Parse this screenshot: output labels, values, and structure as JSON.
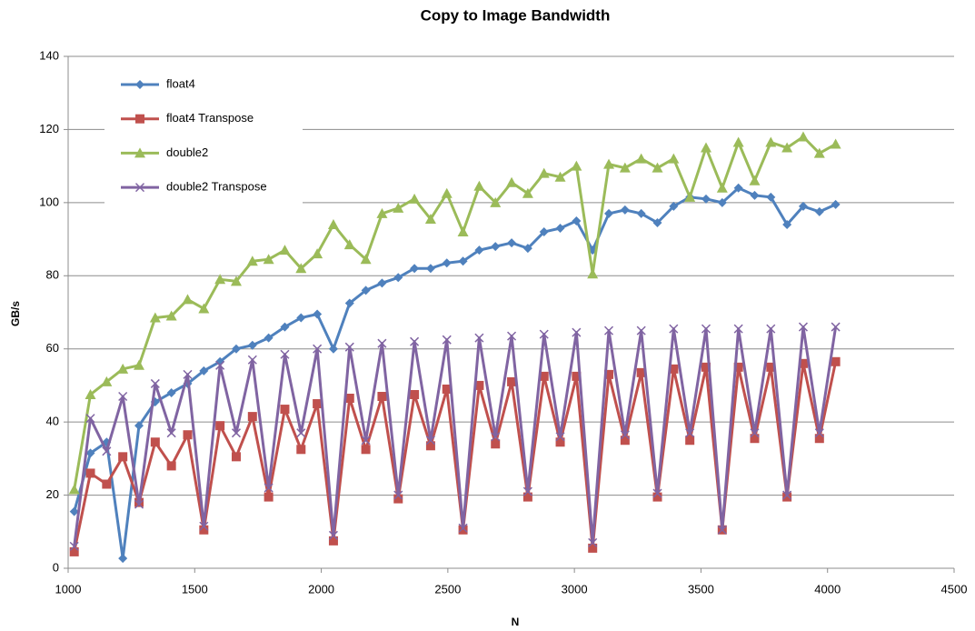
{
  "chart_data": {
    "type": "line",
    "title": "Copy to Image Bandwidth",
    "x_label": "N",
    "y_label": "GB/s",
    "x": [
      1024,
      1088,
      1152,
      1216,
      1280,
      1344,
      1408,
      1472,
      1536,
      1600,
      1664,
      1728,
      1792,
      1856,
      1920,
      1984,
      2048,
      2112,
      2176,
      2240,
      2304,
      2368,
      2432,
      2496,
      2560,
      2624,
      2688,
      2752,
      2816,
      2880,
      2944,
      3008,
      3072,
      3136,
      3200,
      3264,
      3328,
      3392,
      3456,
      3520,
      3584,
      3648,
      3712,
      3776,
      3840,
      3904,
      3968,
      4032
    ],
    "series": [
      {
        "name": "float4",
        "color": "#4f81bd",
        "marker": "diamond",
        "values": [
          15.5,
          31.5,
          34.5,
          2.7,
          39,
          45.5,
          48,
          50.5,
          54,
          56.5,
          60,
          61,
          63,
          66,
          68.5,
          69.5,
          60,
          72.5,
          76,
          78,
          79.5,
          82,
          82,
          83.5,
          84,
          87,
          88,
          89,
          87.5,
          92,
          93,
          95,
          87,
          97,
          98,
          97,
          94.5,
          99,
          101.5,
          101,
          100,
          104,
          102,
          101.5,
          94,
          99,
          97.5,
          99.5
        ]
      },
      {
        "name": "float4 Transpose",
        "color": "#c0504d",
        "marker": "square",
        "values": [
          4.5,
          26,
          23,
          30.5,
          18,
          34.5,
          28,
          36.5,
          10.5,
          39,
          30.5,
          41.5,
          19.5,
          43.5,
          32.5,
          45,
          7.5,
          46.5,
          32.5,
          47,
          19,
          47.5,
          33.5,
          49,
          10.5,
          50,
          34,
          51,
          19.5,
          52.5,
          34.5,
          52.5,
          5.5,
          53,
          35,
          53.5,
          19.5,
          54.5,
          35,
          55,
          10.5,
          55,
          35.5,
          55,
          19.5,
          56,
          35.5,
          56.5
        ]
      },
      {
        "name": "double2",
        "color": "#9bbb59",
        "marker": "triangle",
        "values": [
          21.5,
          47.5,
          51,
          54.5,
          55.5,
          68.5,
          69,
          73.5,
          71,
          79,
          78.5,
          84,
          84.5,
          87,
          82,
          86,
          94,
          88.5,
          84.5,
          97,
          98.5,
          101,
          95.5,
          102.5,
          92,
          104.5,
          100,
          105.5,
          102.5,
          108,
          107,
          110,
          80.5,
          110.5,
          109.5,
          112,
          109.5,
          112,
          101.5,
          115,
          104,
          116.5,
          106,
          116.5,
          115,
          118,
          113.5,
          116
        ]
      },
      {
        "name": "double2 Transpose",
        "color": "#8064a2",
        "marker": "x",
        "values": [
          6,
          41,
          32,
          47,
          17.5,
          50.5,
          37,
          53,
          11.5,
          55.5,
          37,
          57,
          22,
          58.5,
          37,
          60,
          9,
          60.5,
          35,
          61.5,
          20,
          62,
          35,
          62.5,
          11,
          63,
          36,
          63.5,
          21,
          64,
          36,
          64.5,
          7,
          65,
          36.5,
          65,
          20.5,
          65.5,
          37,
          65.5,
          10.5,
          65.5,
          37,
          65.5,
          20,
          66,
          37,
          66
        ]
      }
    ],
    "xlim": [
      1000,
      4500
    ],
    "xticks": [
      1000,
      1500,
      2000,
      2500,
      3000,
      3500,
      4000,
      4500
    ],
    "ylim": [
      0,
      140
    ],
    "yticks": [
      0,
      20,
      40,
      60,
      80,
      100,
      120,
      140
    ],
    "grid": true,
    "legend": "upper left"
  }
}
